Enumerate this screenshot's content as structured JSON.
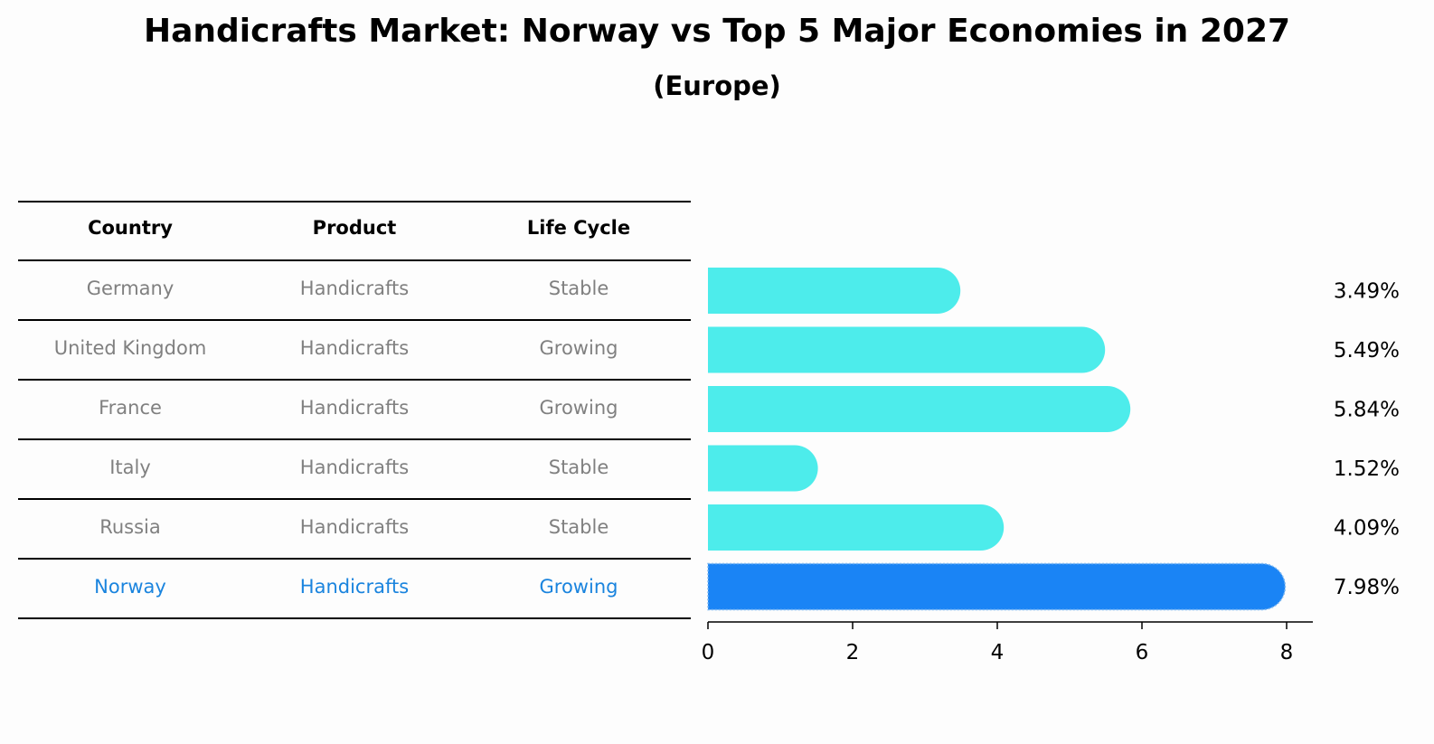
{
  "title": "Handicrafts Market: Norway vs Top 5 Major Economies in 2027",
  "subtitle": "(Europe)",
  "table": {
    "headers": [
      "Country",
      "Product",
      "Life Cycle"
    ],
    "rows": [
      {
        "country": "Germany",
        "product": "Handicrafts",
        "life_cycle": "Stable",
        "highlight": false
      },
      {
        "country": "United Kingdom",
        "product": "Handicrafts",
        "life_cycle": "Growing",
        "highlight": false
      },
      {
        "country": "France",
        "product": "Handicrafts",
        "life_cycle": "Growing",
        "highlight": false
      },
      {
        "country": "Italy",
        "product": "Handicrafts",
        "life_cycle": "Stable",
        "highlight": false
      },
      {
        "country": "Russia",
        "product": "Handicrafts",
        "life_cycle": "Stable",
        "highlight": false
      },
      {
        "country": "Norway",
        "product": "Handicrafts",
        "life_cycle": "Growing",
        "highlight": true
      }
    ]
  },
  "chart_data": {
    "type": "bar",
    "orientation": "horizontal",
    "categories": [
      "Germany",
      "United Kingdom",
      "France",
      "Italy",
      "Russia",
      "Norway"
    ],
    "values": [
      3.49,
      5.49,
      5.84,
      1.52,
      4.09,
      7.98
    ],
    "value_labels": [
      "3.49%",
      "5.49%",
      "5.84%",
      "1.52%",
      "4.09%",
      "7.98%"
    ],
    "xlim": [
      0,
      8.4
    ],
    "xticks": [
      0,
      2,
      4,
      6,
      8
    ],
    "xtick_labels": [
      "0",
      "2",
      "4",
      "6",
      "8"
    ],
    "xlabel": "",
    "ylabel": "",
    "colors": {
      "default": "#4deceb",
      "highlight": "#1a84f5"
    }
  },
  "colors": {
    "muted_text": "#808080",
    "highlight_text": "#1a84de"
  }
}
